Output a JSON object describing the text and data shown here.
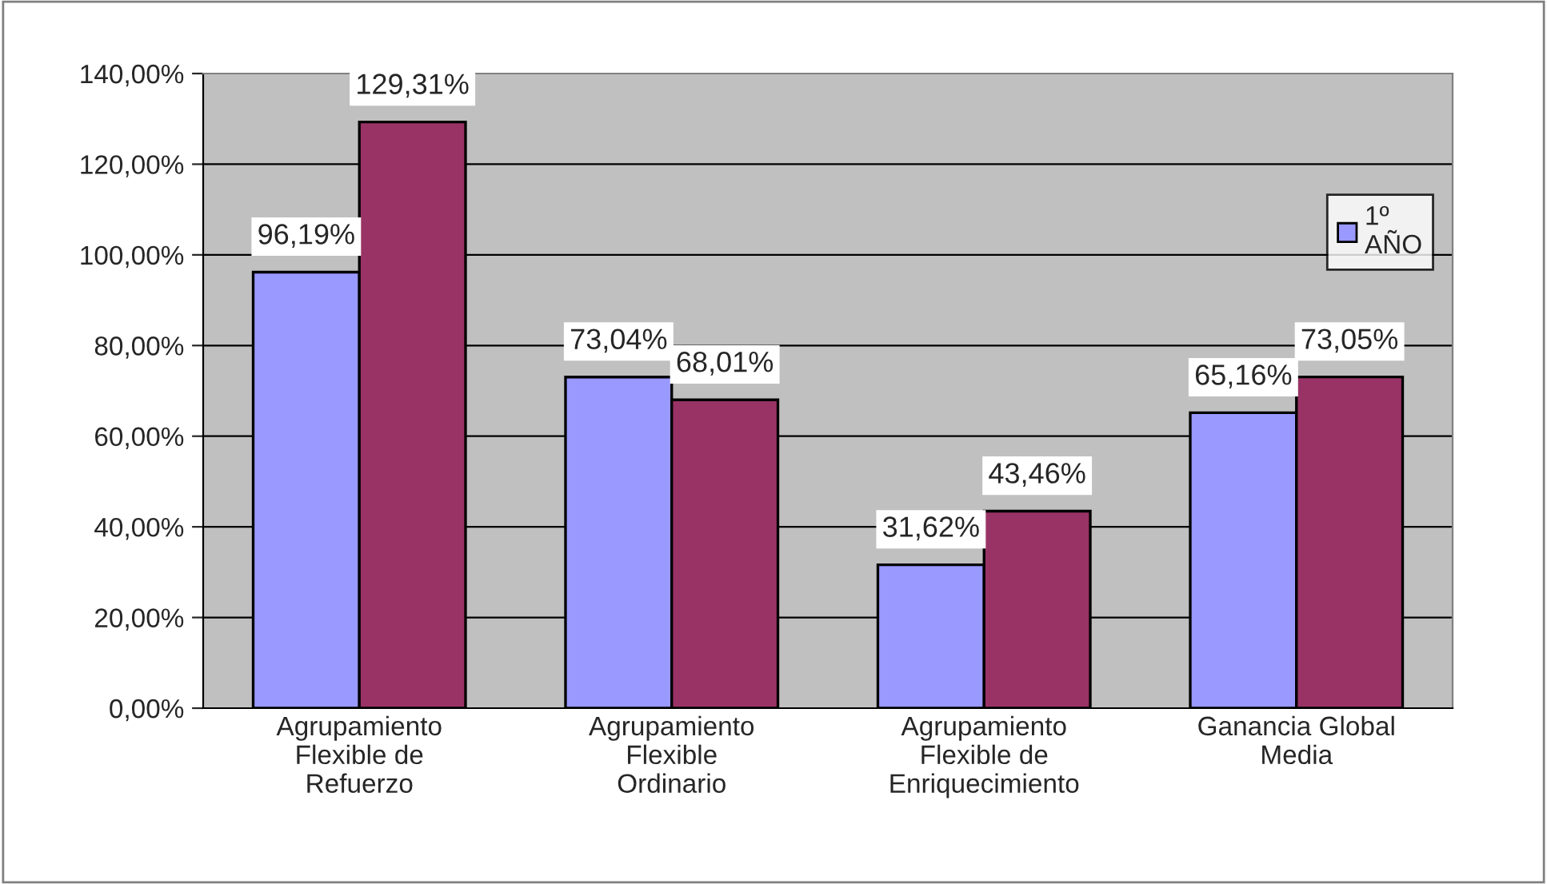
{
  "chart_data": {
    "type": "bar",
    "categories": [
      "Agrupamiento\nFlexible de\nRefuerzo",
      "Agrupamiento\nFlexible\nOrdinario",
      "Agrupamiento\nFlexible de\nEnriquecimiento",
      "Ganancia Global\nMedia"
    ],
    "series": [
      {
        "name": "1º\nAÑO",
        "color": "#9999ff",
        "values": [
          96.19,
          73.04,
          31.62,
          65.16
        ],
        "value_labels": [
          "96,19%",
          "73,04%",
          "31,62%",
          "65,16%"
        ]
      },
      {
        "color": "#993366",
        "values": [
          129.31,
          68.01,
          43.46,
          73.05
        ],
        "value_labels": [
          "129,31%",
          "68,01%",
          "43,46%",
          "73,05%"
        ]
      }
    ],
    "ylim": [
      0,
      140
    ],
    "yticks": [
      {
        "value": 0,
        "label": "0,00%"
      },
      {
        "value": 20,
        "label": "20,00%"
      },
      {
        "value": 40,
        "label": "40,00%"
      },
      {
        "value": 60,
        "label": "60,00%"
      },
      {
        "value": 80,
        "label": "80,00%"
      },
      {
        "value": 100,
        "label": "100,00%"
      },
      {
        "value": 120,
        "label": "120,00%"
      },
      {
        "value": 140,
        "label": "140,00%"
      }
    ],
    "grid": "y",
    "legend": "right"
  }
}
